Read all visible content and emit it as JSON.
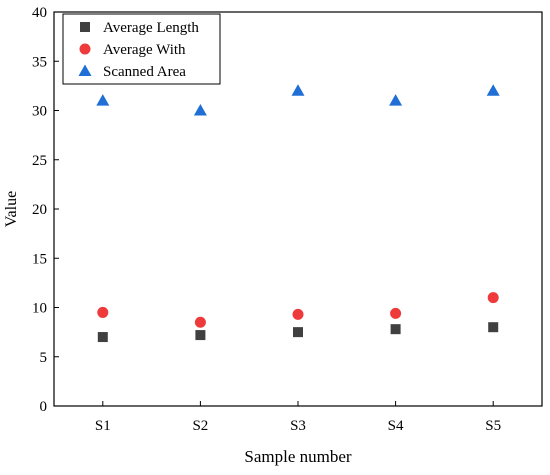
{
  "chart_data": {
    "type": "scatter",
    "title": "",
    "xlabel": "Sample number",
    "ylabel": "Value",
    "categories": [
      "S1",
      "S2",
      "S3",
      "S4",
      "S5"
    ],
    "ylim": [
      0,
      40
    ],
    "yticks": [
      "0",
      "5",
      "10",
      "15",
      "20",
      "25",
      "30",
      "35",
      "40"
    ],
    "grid": false,
    "legend_position": "top-left",
    "series": [
      {
        "name": "Average Length",
        "marker": "square",
        "color": "#404040",
        "values": [
          7.0,
          7.2,
          7.5,
          7.8,
          8.0
        ]
      },
      {
        "name": "Average With",
        "marker": "circle",
        "color": "#ee3a3a",
        "values": [
          9.5,
          8.5,
          9.3,
          9.4,
          11.0
        ]
      },
      {
        "name": "Scanned Area",
        "marker": "triangle",
        "color": "#1f6fd6",
        "values": [
          31,
          30,
          32,
          31,
          32
        ]
      }
    ]
  }
}
